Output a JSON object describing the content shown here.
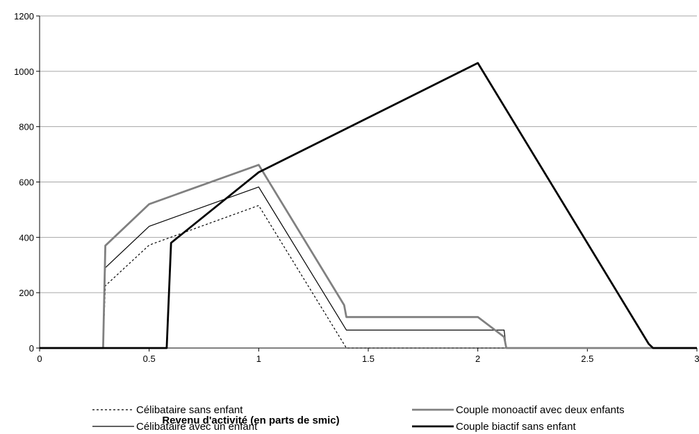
{
  "chart_data": {
    "type": "line",
    "title": "",
    "xlabel": "Revenu d'activité (en parts de smic)",
    "ylabel": "",
    "xlim": [
      0,
      3
    ],
    "ylim": [
      0,
      1200
    ],
    "xticks": [
      0,
      0.5,
      1,
      1.5,
      2,
      2.5,
      3
    ],
    "xtick_labels": [
      "0",
      "0.5",
      "1",
      "1.5",
      "2",
      "2.5",
      "3"
    ],
    "yticks": [
      0,
      200,
      400,
      600,
      800,
      1000,
      1200
    ],
    "ytick_labels": [
      "0",
      "200",
      "400",
      "600",
      "800",
      "1000",
      "1200"
    ],
    "grid": "horizontal",
    "legend": "bottom",
    "series": [
      {
        "name": "Célibataire sans enfant",
        "color": "#000000",
        "style": "dotted",
        "points": [
          [
            0,
            0
          ],
          [
            0.29,
            0
          ],
          [
            0.3,
            225
          ],
          [
            0.5,
            372
          ],
          [
            1.0,
            515
          ],
          [
            1.4,
            0
          ],
          [
            3.0,
            0
          ]
        ]
      },
      {
        "name": "Célibataire avec un enfant",
        "color": "#000000",
        "style": "thin",
        "points": [
          [
            0,
            0
          ],
          [
            0.29,
            0
          ],
          [
            0.3,
            290
          ],
          [
            0.5,
            440
          ],
          [
            1.0,
            582
          ],
          [
            1.4,
            65
          ],
          [
            2.12,
            65
          ],
          [
            2.13,
            0
          ],
          [
            3.0,
            0
          ]
        ]
      },
      {
        "name": "Couple monoactif avec deux enfants",
        "color": "#808080",
        "style": "thick",
        "points": [
          [
            0,
            0
          ],
          [
            0.29,
            0
          ],
          [
            0.3,
            370
          ],
          [
            0.5,
            520
          ],
          [
            1.0,
            662
          ],
          [
            1.39,
            155
          ],
          [
            1.4,
            112
          ],
          [
            2.0,
            112
          ],
          [
            2.12,
            40
          ],
          [
            2.13,
            0
          ],
          [
            3.0,
            0
          ]
        ]
      },
      {
        "name": "Couple biactif sans enfant",
        "color": "#000000",
        "style": "thick",
        "points": [
          [
            0,
            0
          ],
          [
            0.58,
            0
          ],
          [
            0.6,
            380
          ],
          [
            1.0,
            635
          ],
          [
            2.0,
            1030
          ],
          [
            2.78,
            15
          ],
          [
            2.8,
            0
          ],
          [
            3.0,
            0
          ]
        ]
      }
    ]
  }
}
